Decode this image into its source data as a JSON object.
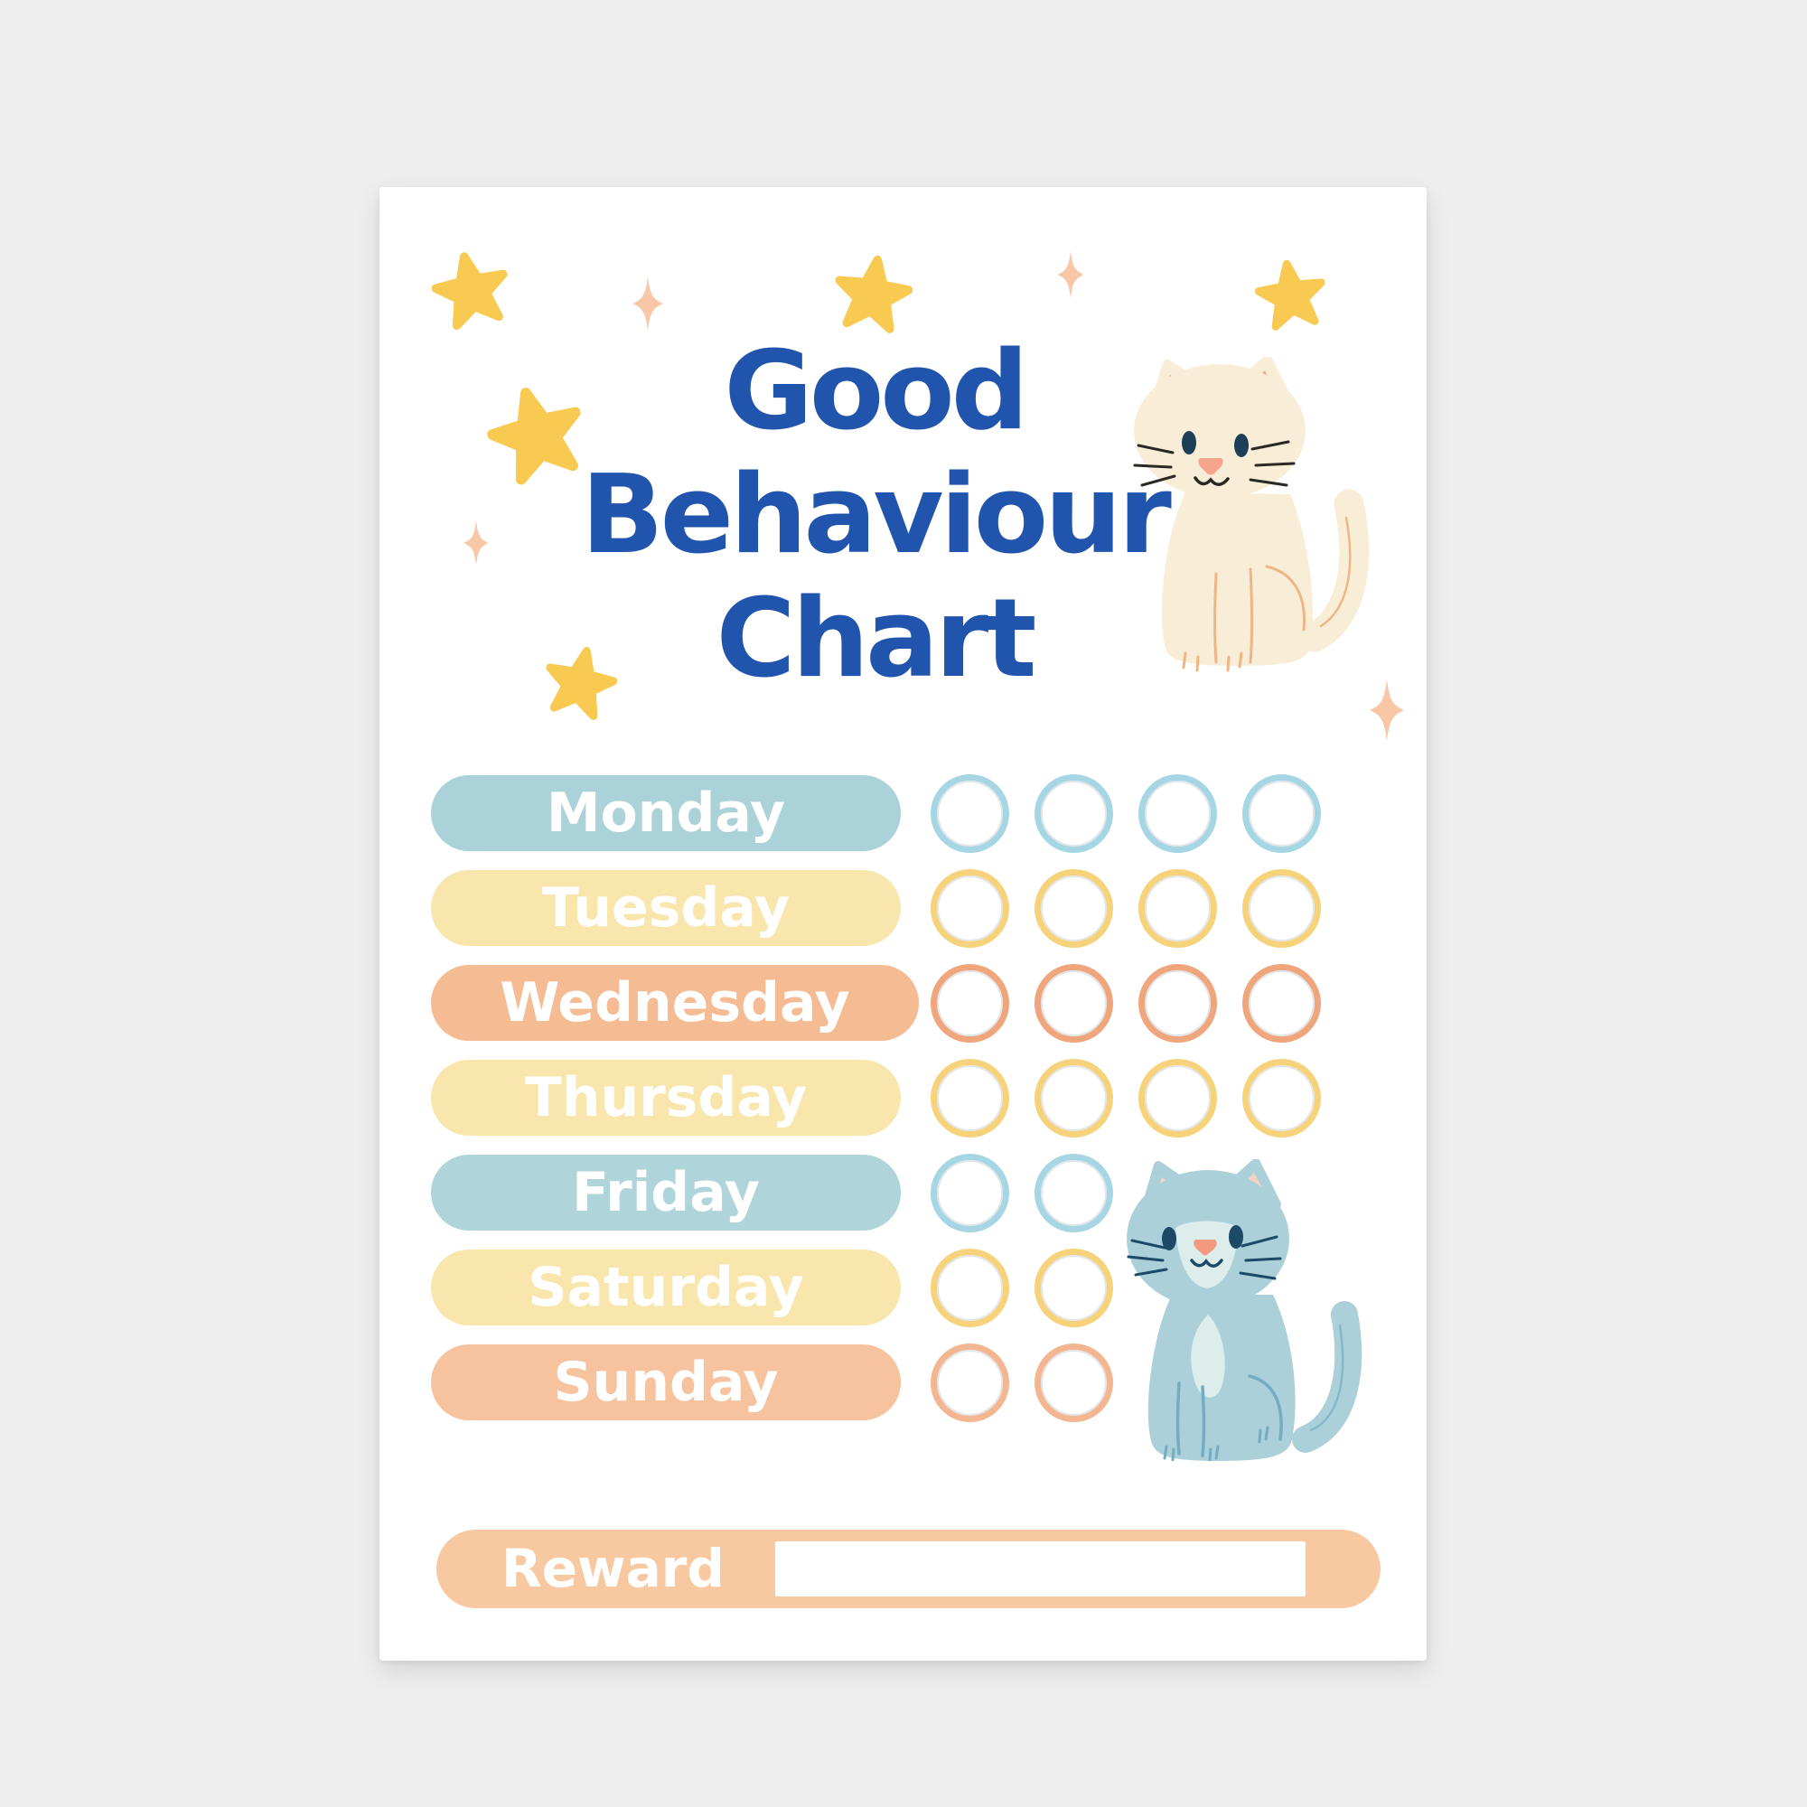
{
  "page": {
    "background_color": "#eeeeee",
    "card_color": "#ffffff"
  },
  "poster": {
    "title": {
      "full": "Good Behaviour Chart",
      "lines": [
        "Good",
        "Behaviour",
        "Chart"
      ],
      "color": "#2155ad"
    },
    "decor": {
      "star_icon_color": "#f9ca51",
      "sparkle_icon_color": "#f8c7a5",
      "star_count": 5,
      "sparkle_count": 4
    },
    "cats": [
      {
        "name": "cream-cat",
        "body_color": "#f8eed8",
        "ear_inner_color": "#f6a58c",
        "accent_color": "#efb585"
      },
      {
        "name": "blue-cat",
        "body_color": "#abd0da",
        "ear_inner_color": "#f4d2c5",
        "patch_color": "#dcedeb",
        "accent_color": "#74acc2",
        "nose_color": "#f29980"
      }
    ],
    "days": [
      {
        "label": "Monday",
        "pill_color": "#abd2d8",
        "circle_color": "#a6d6e3",
        "slots": 4
      },
      {
        "label": "Tuesday",
        "pill_color": "#f8e6ad",
        "circle_color": "#f6d27b",
        "slots": 4
      },
      {
        "label": "Wednesday",
        "pill_color": "#f5bb92",
        "circle_color": "#f0a67d",
        "slots": 4
      },
      {
        "label": "Thursday",
        "pill_color": "#f8e6ad",
        "circle_color": "#f6d27b",
        "slots": 4
      },
      {
        "label": "Friday",
        "pill_color": "#afd4d9",
        "circle_color": "#a6d6e3",
        "slots": 2
      },
      {
        "label": "Saturday",
        "pill_color": "#f8e6ad",
        "circle_color": "#f6d27b",
        "slots": 2
      },
      {
        "label": "Sunday",
        "pill_color": "#f7c29e",
        "circle_color": "#f3b691",
        "slots": 2
      }
    ],
    "reward": {
      "label": "Reward",
      "bar_color": "#f8c9a1",
      "value": ""
    }
  }
}
